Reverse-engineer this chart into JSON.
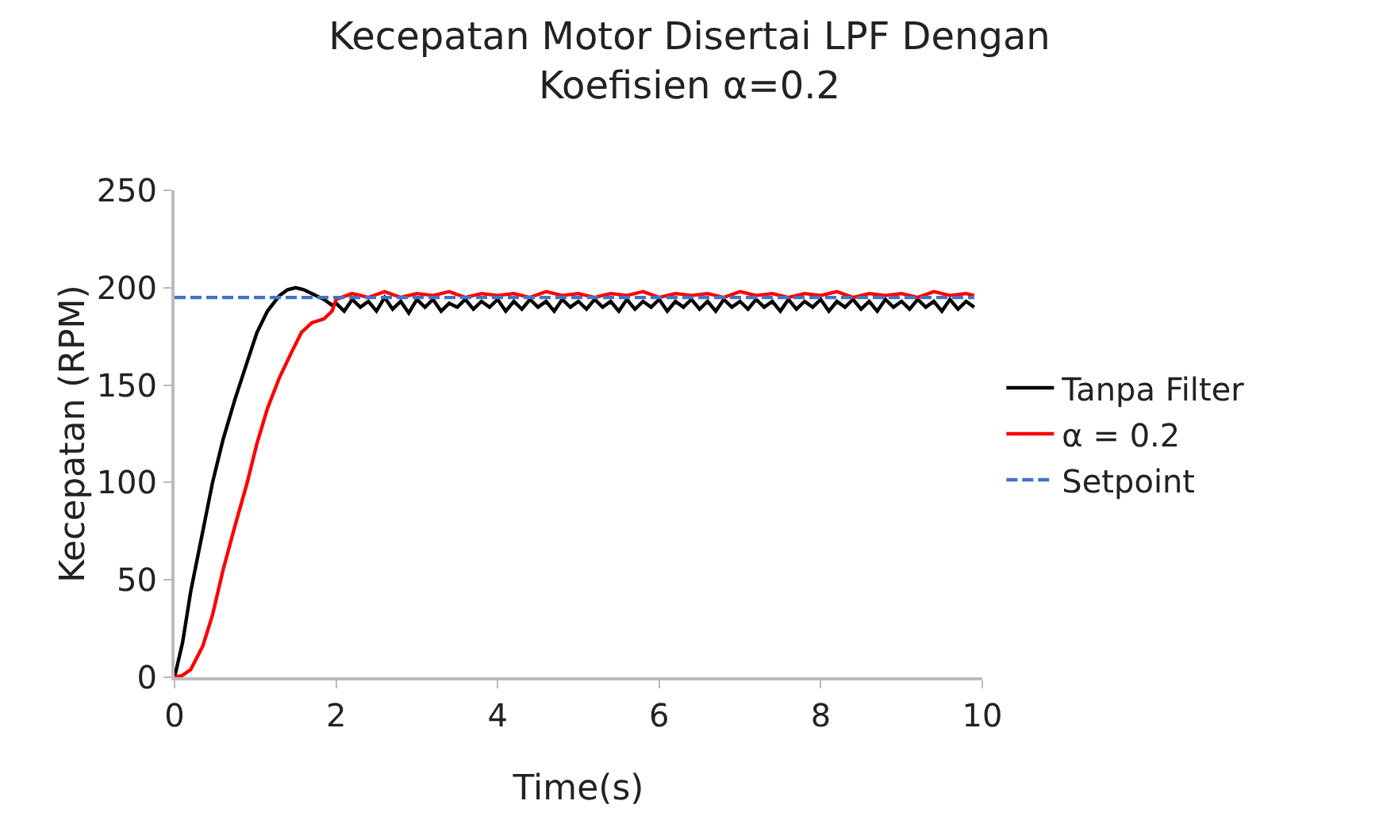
{
  "chart_data": {
    "type": "line",
    "title": "Kecepatan Motor Disertai LPF Dengan\nKoefisien α=0.2",
    "xlabel": "Time(s)",
    "ylabel": "Kecepatan (RPM)",
    "xlim": [
      0,
      10
    ],
    "ylim": [
      0,
      250
    ],
    "xticks": [
      0,
      2,
      4,
      6,
      8,
      10
    ],
    "yticks": [
      0,
      50,
      100,
      150,
      200,
      250
    ],
    "grid": false,
    "legend": "right",
    "marker": "none",
    "series": [
      {
        "name": "Tanpa Filter",
        "color": "#000000",
        "line_style": "solid",
        "x": [
          0,
          0.1,
          0.2,
          0.35,
          0.47,
          0.6,
          0.75,
          0.9,
          1.02,
          1.15,
          1.3,
          1.4,
          1.5,
          1.6,
          1.7,
          1.85,
          1.95,
          2.0,
          2.1,
          2.2,
          2.3,
          2.4,
          2.5,
          2.6,
          2.7,
          2.8,
          2.9,
          3.0,
          3.1,
          3.2,
          3.3,
          3.4,
          3.5,
          3.6,
          3.7,
          3.8,
          3.9,
          4.0,
          4.1,
          4.2,
          4.3,
          4.4,
          4.5,
          4.6,
          4.7,
          4.8,
          4.9,
          5.0,
          5.1,
          5.2,
          5.3,
          5.4,
          5.5,
          5.6,
          5.7,
          5.8,
          5.9,
          6.0,
          6.1,
          6.2,
          6.3,
          6.4,
          6.5,
          6.6,
          6.7,
          6.8,
          6.9,
          7.0,
          7.1,
          7.2,
          7.3,
          7.4,
          7.5,
          7.6,
          7.7,
          7.8,
          7.9,
          8.0,
          8.1,
          8.2,
          8.3,
          8.4,
          8.5,
          8.6,
          8.7,
          8.8,
          8.9,
          9.0,
          9.1,
          9.2,
          9.3,
          9.4,
          9.5,
          9.6,
          9.7,
          9.8,
          9.9
        ],
        "values": [
          0,
          18,
          44,
          75,
          100,
          122,
          143,
          162,
          177,
          188,
          196,
          199,
          200,
          199,
          197,
          194,
          191,
          192,
          188,
          194,
          190,
          193,
          188,
          195,
          189,
          193,
          187,
          194,
          190,
          194,
          188,
          192,
          190,
          194,
          189,
          193,
          190,
          194,
          188,
          193,
          189,
          194,
          190,
          193,
          188,
          194,
          190,
          193,
          189,
          194,
          190,
          193,
          188,
          194,
          189,
          193,
          190,
          194,
          188,
          193,
          190,
          194,
          189,
          193,
          188,
          194,
          190,
          193,
          189,
          194,
          190,
          193,
          188,
          194,
          189,
          193,
          190,
          194,
          188,
          193,
          190,
          194,
          189,
          193,
          188,
          194,
          190,
          193,
          189,
          194,
          190,
          193,
          188,
          194,
          189,
          193,
          190
        ]
      },
      {
        "name": "α = 0.2",
        "color": "#ff0000",
        "line_style": "solid",
        "x": [
          0,
          0.1,
          0.2,
          0.35,
          0.47,
          0.6,
          0.75,
          0.9,
          1.02,
          1.15,
          1.3,
          1.45,
          1.57,
          1.7,
          1.85,
          1.95,
          2.0,
          2.2,
          2.4,
          2.6,
          2.8,
          3.0,
          3.2,
          3.4,
          3.6,
          3.8,
          4.0,
          4.2,
          4.4,
          4.6,
          4.8,
          5.0,
          5.2,
          5.4,
          5.6,
          5.8,
          6.0,
          6.2,
          6.4,
          6.6,
          6.8,
          7.0,
          7.2,
          7.4,
          7.6,
          7.8,
          8.0,
          8.2,
          8.4,
          8.6,
          8.8,
          9.0,
          9.2,
          9.4,
          9.6,
          9.8,
          9.9
        ],
        "values": [
          0,
          1,
          4,
          16,
          32,
          55,
          78,
          100,
          120,
          138,
          154,
          167,
          177,
          182,
          184,
          188,
          194,
          197,
          195,
          198,
          195,
          197,
          196,
          198,
          195,
          197,
          196,
          197,
          195,
          198,
          196,
          197,
          195,
          197,
          196,
          198,
          195,
          197,
          196,
          197,
          195,
          198,
          196,
          197,
          195,
          197,
          196,
          198,
          195,
          197,
          196,
          197,
          195,
          198,
          196,
          197,
          196
        ]
      },
      {
        "name": "Setpoint",
        "color": "#4472c4",
        "line_style": "dashed",
        "x": [
          0,
          9.9
        ],
        "values": [
          195,
          195
        ]
      }
    ]
  }
}
